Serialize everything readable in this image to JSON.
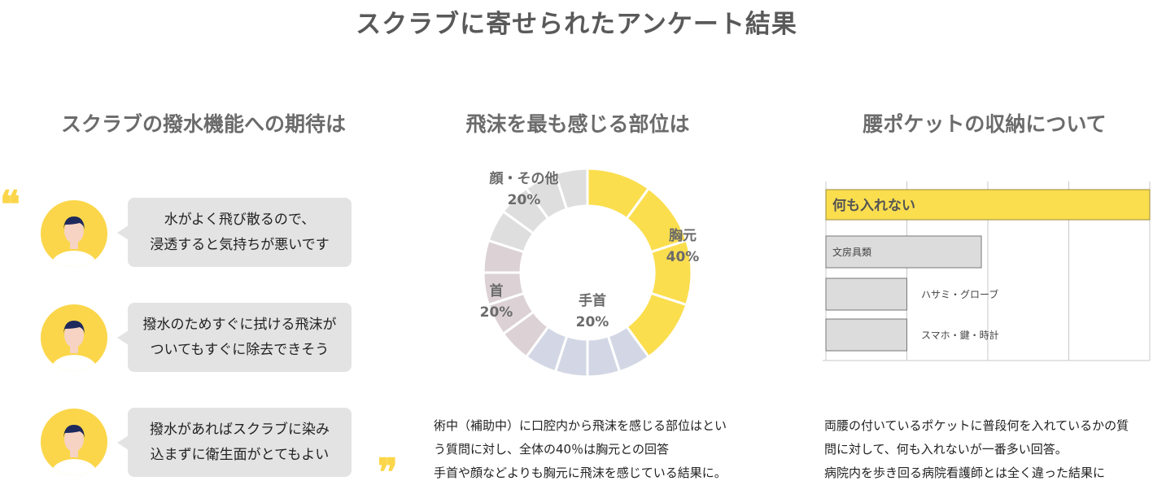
{
  "page": {
    "title": "スクラブに寄せられたアンケート結果"
  },
  "left": {
    "title": "スクラブの撥水機能への期待は",
    "quotes": [
      {
        "line1": "水がよく飛び散るので、",
        "line2": "浸透すると気持ちが悪いです"
      },
      {
        "line1": "撥水のためすぐに拭ける飛沫が",
        "line2": "ついてもすぐに除去できそう"
      },
      {
        "line1": "撥水があればスクラブに染み",
        "line2": "込まずに衛生面がとてもよい"
      }
    ],
    "quote_mark": "❝"
  },
  "middle": {
    "title": "飛沫を最も感じる部位は",
    "desc": [
      "術中（補助中）に口腔内から飛沫を感じる部位はとい",
      "う質問に対し、全体の40％は胸元との回答",
      "手首や顔などよりも胸元に飛沫を感じている結果に。"
    ],
    "quote_mark": "❞"
  },
  "right": {
    "title": "腰ポケットの収納について",
    "desc": [
      "両腰の付いているポケットに普段何を入れているかの質",
      "問に対して、何も入れないが一番多い回答。",
      "病院内を歩き回る病院看護師とは全く違った結果に"
    ]
  },
  "chart_data": [
    {
      "type": "pie",
      "variant": "donut",
      "slices": [
        {
          "label": "胸元",
          "value": 40,
          "value_label": "40%",
          "color": "#fbde4e"
        },
        {
          "label": "手首",
          "value": 20,
          "value_label": "20%",
          "color": "#d3d7e5"
        },
        {
          "label": "首",
          "value": 20,
          "value_label": "20%",
          "color": "#dcd2d6"
        },
        {
          "label": "顔・その他",
          "value": 20,
          "value_label": "20%",
          "color": "#dedede"
        }
      ],
      "segments_per_slice": 4,
      "start": "top",
      "direction": "clockwise"
    },
    {
      "type": "bar",
      "orientation": "horizontal",
      "categories": [
        "何も入れない",
        "文房具類",
        "ハサミ・グローブ",
        "スマホ・鍵・時計"
      ],
      "values": [
        100,
        48,
        25,
        25
      ],
      "xlim": [
        0,
        100
      ],
      "gridlines": [
        0,
        25,
        50,
        75,
        100
      ],
      "colors": [
        "#fbde4e",
        "#dcdcdc",
        "#dcdcdc",
        "#dcdcdc"
      ],
      "grid": true
    }
  ]
}
